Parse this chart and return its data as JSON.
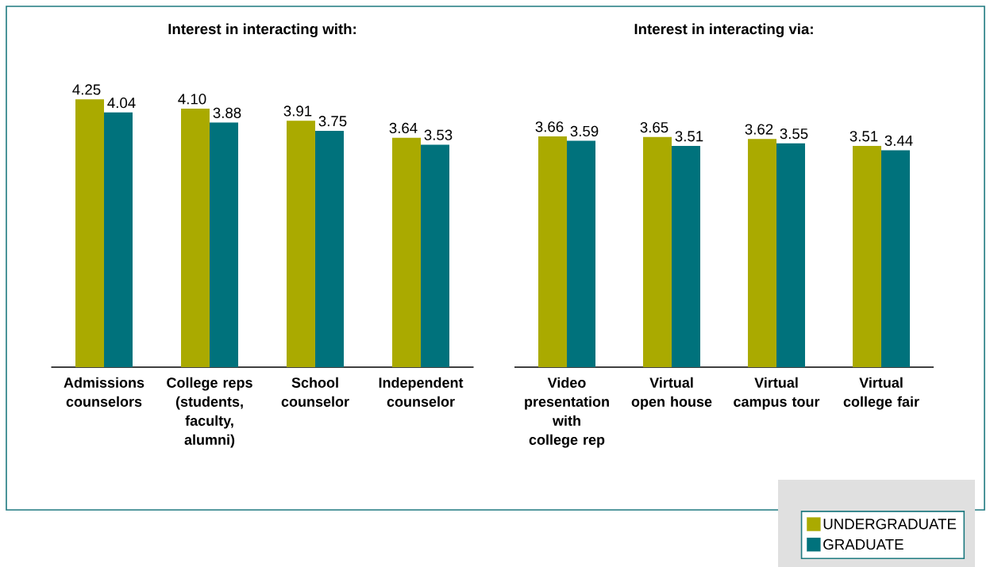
{
  "chart_data": [
    {
      "type": "bar",
      "title": "Interest in interacting with:",
      "categories": [
        "Admissions counselors",
        "College reps (students, faculty, alumni)",
        "School counselor",
        "Independent counselor"
      ],
      "legend": false,
      "series": [
        {
          "color": "#aaaa00",
          "values": [
            4.25,
            4.1,
            3.91,
            3.64
          ],
          "value_labels": [
            "4.25",
            "4.10",
            "3.91",
            "3.64"
          ]
        },
        {
          "color": "#00727c",
          "values": [
            4.04,
            3.88,
            3.75,
            3.53
          ],
          "value_labels": [
            "4.04",
            "3.88",
            "3.75",
            "3.53"
          ]
        }
      ]
    },
    {
      "type": "bar",
      "title": "Interest in interacting via:",
      "categories": [
        "Video presentation with college rep",
        "Virtual open house",
        "Virtual campus tour",
        "Virtual college fair"
      ],
      "legend": "bottom right",
      "series": [
        {
          "name": "UNDERGRADUATE",
          "color": "#aaaa00",
          "values": [
            3.66,
            3.65,
            3.62,
            3.51
          ],
          "value_labels": [
            "3.66",
            "3.65",
            "3.62",
            "3.51"
          ]
        },
        {
          "name": "GRADUATE",
          "color": "#00727c",
          "values": [
            3.59,
            3.51,
            3.55,
            3.44
          ],
          "value_labels": [
            "3.59",
            "3.51",
            "3.55",
            "3.44"
          ]
        }
      ]
    }
  ]
}
